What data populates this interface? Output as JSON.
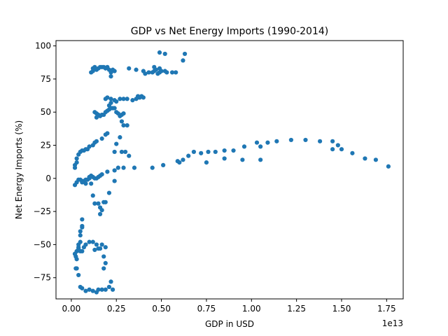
{
  "chart_data": {
    "type": "scatter",
    "title": "GDP vs Net Energy Imports (1990-2014)",
    "xlabel": "GDP in USD",
    "ylabel": "Net Energy Imports (%)",
    "x_offset_label": "1e13",
    "x_units_scale": 10000000000000.0,
    "xlim": [
      -0.085,
      1.842
    ],
    "ylim": [
      -91,
      104
    ],
    "xticks": [
      {
        "value": 0.0,
        "label": "0.00"
      },
      {
        "value": 0.25,
        "label": "0.25"
      },
      {
        "value": 0.5,
        "label": "0.50"
      },
      {
        "value": 0.75,
        "label": "0.75"
      },
      {
        "value": 1.0,
        "label": "1.00"
      },
      {
        "value": 1.25,
        "label": "1.25"
      },
      {
        "value": 1.5,
        "label": "1.50"
      },
      {
        "value": 1.75,
        "label": "1.75"
      }
    ],
    "yticks": [
      {
        "value": -75,
        "label": "−75"
      },
      {
        "value": -50,
        "label": "−50"
      },
      {
        "value": -25,
        "label": "−25"
      },
      {
        "value": 0,
        "label": "0"
      },
      {
        "value": 25,
        "label": "25"
      },
      {
        "value": 50,
        "label": "50"
      },
      {
        "value": 75,
        "label": "75"
      },
      {
        "value": 100,
        "label": "100"
      }
    ],
    "grid": false,
    "marker_color": "#1f77b4",
    "points": [
      [
        0.02,
        -57
      ],
      [
        0.025,
        -59
      ],
      [
        0.03,
        -61
      ],
      [
        0.025,
        -68
      ],
      [
        0.03,
        -68
      ],
      [
        0.04,
        -73
      ],
      [
        0.05,
        -82
      ],
      [
        0.06,
        -83
      ],
      [
        0.08,
        -85
      ],
      [
        0.1,
        -84
      ],
      [
        0.12,
        -85
      ],
      [
        0.14,
        -86
      ],
      [
        0.15,
        -84
      ],
      [
        0.17,
        -84
      ],
      [
        0.19,
        -84
      ],
      [
        0.21,
        -82
      ],
      [
        0.22,
        -78
      ],
      [
        0.23,
        -84
      ],
      [
        0.02,
        -57
      ],
      [
        0.03,
        -55
      ],
      [
        0.04,
        -52
      ],
      [
        0.04,
        -50
      ],
      [
        0.05,
        -48
      ],
      [
        0.05,
        -43
      ],
      [
        0.05,
        -40
      ],
      [
        0.06,
        -37
      ],
      [
        0.06,
        -36
      ],
      [
        0.06,
        -31
      ],
      [
        0.04,
        -53
      ],
      [
        0.05,
        -55
      ],
      [
        0.06,
        -55
      ],
      [
        0.07,
        -52
      ],
      [
        0.08,
        -50
      ],
      [
        0.1,
        -48
      ],
      [
        0.12,
        -48
      ],
      [
        0.14,
        -50
      ],
      [
        0.15,
        -53
      ],
      [
        0.13,
        -54
      ],
      [
        0.16,
        -53
      ],
      [
        0.17,
        -50
      ],
      [
        0.19,
        -52
      ],
      [
        0.18,
        -59
      ],
      [
        0.19,
        -64
      ],
      [
        0.18,
        -68
      ],
      [
        0.02,
        -5
      ],
      [
        0.03,
        -3
      ],
      [
        0.04,
        -1
      ],
      [
        0.05,
        -1
      ],
      [
        0.06,
        -2
      ],
      [
        0.07,
        -2
      ],
      [
        0.08,
        -1
      ],
      [
        0.09,
        -1
      ],
      [
        0.1,
        0
      ],
      [
        0.1,
        1
      ],
      [
        0.11,
        2
      ],
      [
        0.12,
        1
      ],
      [
        0.13,
        0
      ],
      [
        0.14,
        0
      ],
      [
        0.15,
        1
      ],
      [
        0.16,
        2
      ],
      [
        0.17,
        3
      ],
      [
        0.11,
        -4
      ],
      [
        0.08,
        -4
      ],
      [
        0.06,
        -3
      ],
      [
        0.12,
        -13
      ],
      [
        0.13,
        -19
      ],
      [
        0.15,
        -19
      ],
      [
        0.16,
        -22
      ],
      [
        0.17,
        -24
      ],
      [
        0.16,
        -27
      ],
      [
        0.18,
        -18
      ],
      [
        0.19,
        -18
      ],
      [
        0.21,
        -11
      ],
      [
        0.2,
        5
      ],
      [
        0.24,
        6
      ],
      [
        0.26,
        8
      ],
      [
        0.29,
        8
      ],
      [
        0.35,
        8
      ],
      [
        0.24,
        -2
      ],
      [
        0.02,
        8
      ],
      [
        0.02,
        10
      ],
      [
        0.03,
        12
      ],
      [
        0.03,
        15
      ],
      [
        0.04,
        18
      ],
      [
        0.05,
        20
      ],
      [
        0.06,
        21
      ],
      [
        0.07,
        21
      ],
      [
        0.08,
        22
      ],
      [
        0.09,
        22
      ],
      [
        0.1,
        24
      ],
      [
        0.12,
        25
      ],
      [
        0.13,
        27
      ],
      [
        0.14,
        28
      ],
      [
        0.17,
        30
      ],
      [
        0.19,
        33
      ],
      [
        0.2,
        34
      ],
      [
        0.24,
        20
      ],
      [
        0.25,
        26
      ],
      [
        0.27,
        31
      ],
      [
        0.28,
        20
      ],
      [
        0.3,
        20
      ],
      [
        0.32,
        17
      ],
      [
        0.13,
        50
      ],
      [
        0.14,
        49
      ],
      [
        0.15,
        48
      ],
      [
        0.14,
        46
      ],
      [
        0.16,
        47
      ],
      [
        0.17,
        48
      ],
      [
        0.18,
        48
      ],
      [
        0.19,
        50
      ],
      [
        0.2,
        51
      ],
      [
        0.21,
        52
      ],
      [
        0.22,
        53
      ],
      [
        0.23,
        53
      ],
      [
        0.24,
        53
      ],
      [
        0.25,
        50
      ],
      [
        0.26,
        49
      ],
      [
        0.27,
        47
      ],
      [
        0.28,
        48
      ],
      [
        0.29,
        49
      ],
      [
        0.28,
        43
      ],
      [
        0.29,
        40
      ],
      [
        0.31,
        40
      ],
      [
        0.22,
        57
      ],
      [
        0.21,
        55
      ],
      [
        0.19,
        60
      ],
      [
        0.2,
        61
      ],
      [
        0.22,
        60
      ],
      [
        0.24,
        59
      ],
      [
        0.25,
        58
      ],
      [
        0.27,
        60
      ],
      [
        0.29,
        60
      ],
      [
        0.31,
        60
      ],
      [
        0.34,
        59
      ],
      [
        0.36,
        60
      ],
      [
        0.37,
        61
      ],
      [
        0.38,
        61
      ],
      [
        0.39,
        62
      ],
      [
        0.37,
        62
      ],
      [
        0.4,
        61
      ],
      [
        0.11,
        80
      ],
      [
        0.12,
        81
      ],
      [
        0.12,
        83
      ],
      [
        0.13,
        84
      ],
      [
        0.14,
        82
      ],
      [
        0.15,
        83
      ],
      [
        0.16,
        84
      ],
      [
        0.17,
        84
      ],
      [
        0.18,
        84
      ],
      [
        0.19,
        83
      ],
      [
        0.2,
        84
      ],
      [
        0.21,
        82
      ],
      [
        0.22,
        80
      ],
      [
        0.22,
        77
      ],
      [
        0.23,
        82
      ],
      [
        0.24,
        81
      ],
      [
        0.32,
        83
      ],
      [
        0.36,
        82
      ],
      [
        0.4,
        81
      ],
      [
        0.41,
        79
      ],
      [
        0.43,
        80
      ],
      [
        0.45,
        80
      ],
      [
        0.46,
        81
      ],
      [
        0.47,
        82
      ],
      [
        0.48,
        79
      ],
      [
        0.49,
        80
      ],
      [
        0.5,
        81
      ],
      [
        0.52,
        81
      ],
      [
        0.53,
        80
      ],
      [
        0.56,
        80
      ],
      [
        0.58,
        80
      ],
      [
        0.46,
        84
      ],
      [
        0.49,
        83
      ],
      [
        0.49,
        95
      ],
      [
        0.52,
        94
      ],
      [
        0.62,
        89
      ],
      [
        0.63,
        94
      ],
      [
        0.45,
        8
      ],
      [
        0.51,
        10
      ],
      [
        0.59,
        13
      ],
      [
        0.6,
        12
      ],
      [
        0.62,
        14
      ],
      [
        0.65,
        17
      ],
      [
        0.68,
        20
      ],
      [
        0.72,
        19
      ],
      [
        0.75,
        12
      ],
      [
        0.76,
        20
      ],
      [
        0.8,
        20
      ],
      [
        0.85,
        21
      ],
      [
        0.85,
        15
      ],
      [
        0.9,
        21
      ],
      [
        0.95,
        14
      ],
      [
        0.96,
        24
      ],
      [
        1.03,
        27
      ],
      [
        1.05,
        24
      ],
      [
        1.05,
        14
      ],
      [
        1.09,
        27
      ],
      [
        1.14,
        28
      ],
      [
        1.22,
        29
      ],
      [
        1.3,
        29
      ],
      [
        1.38,
        28
      ],
      [
        1.45,
        28
      ],
      [
        1.45,
        22
      ],
      [
        1.48,
        25
      ],
      [
        1.5,
        22
      ],
      [
        1.56,
        19
      ],
      [
        1.63,
        15
      ],
      [
        1.69,
        14
      ],
      [
        1.76,
        9
      ]
    ]
  }
}
